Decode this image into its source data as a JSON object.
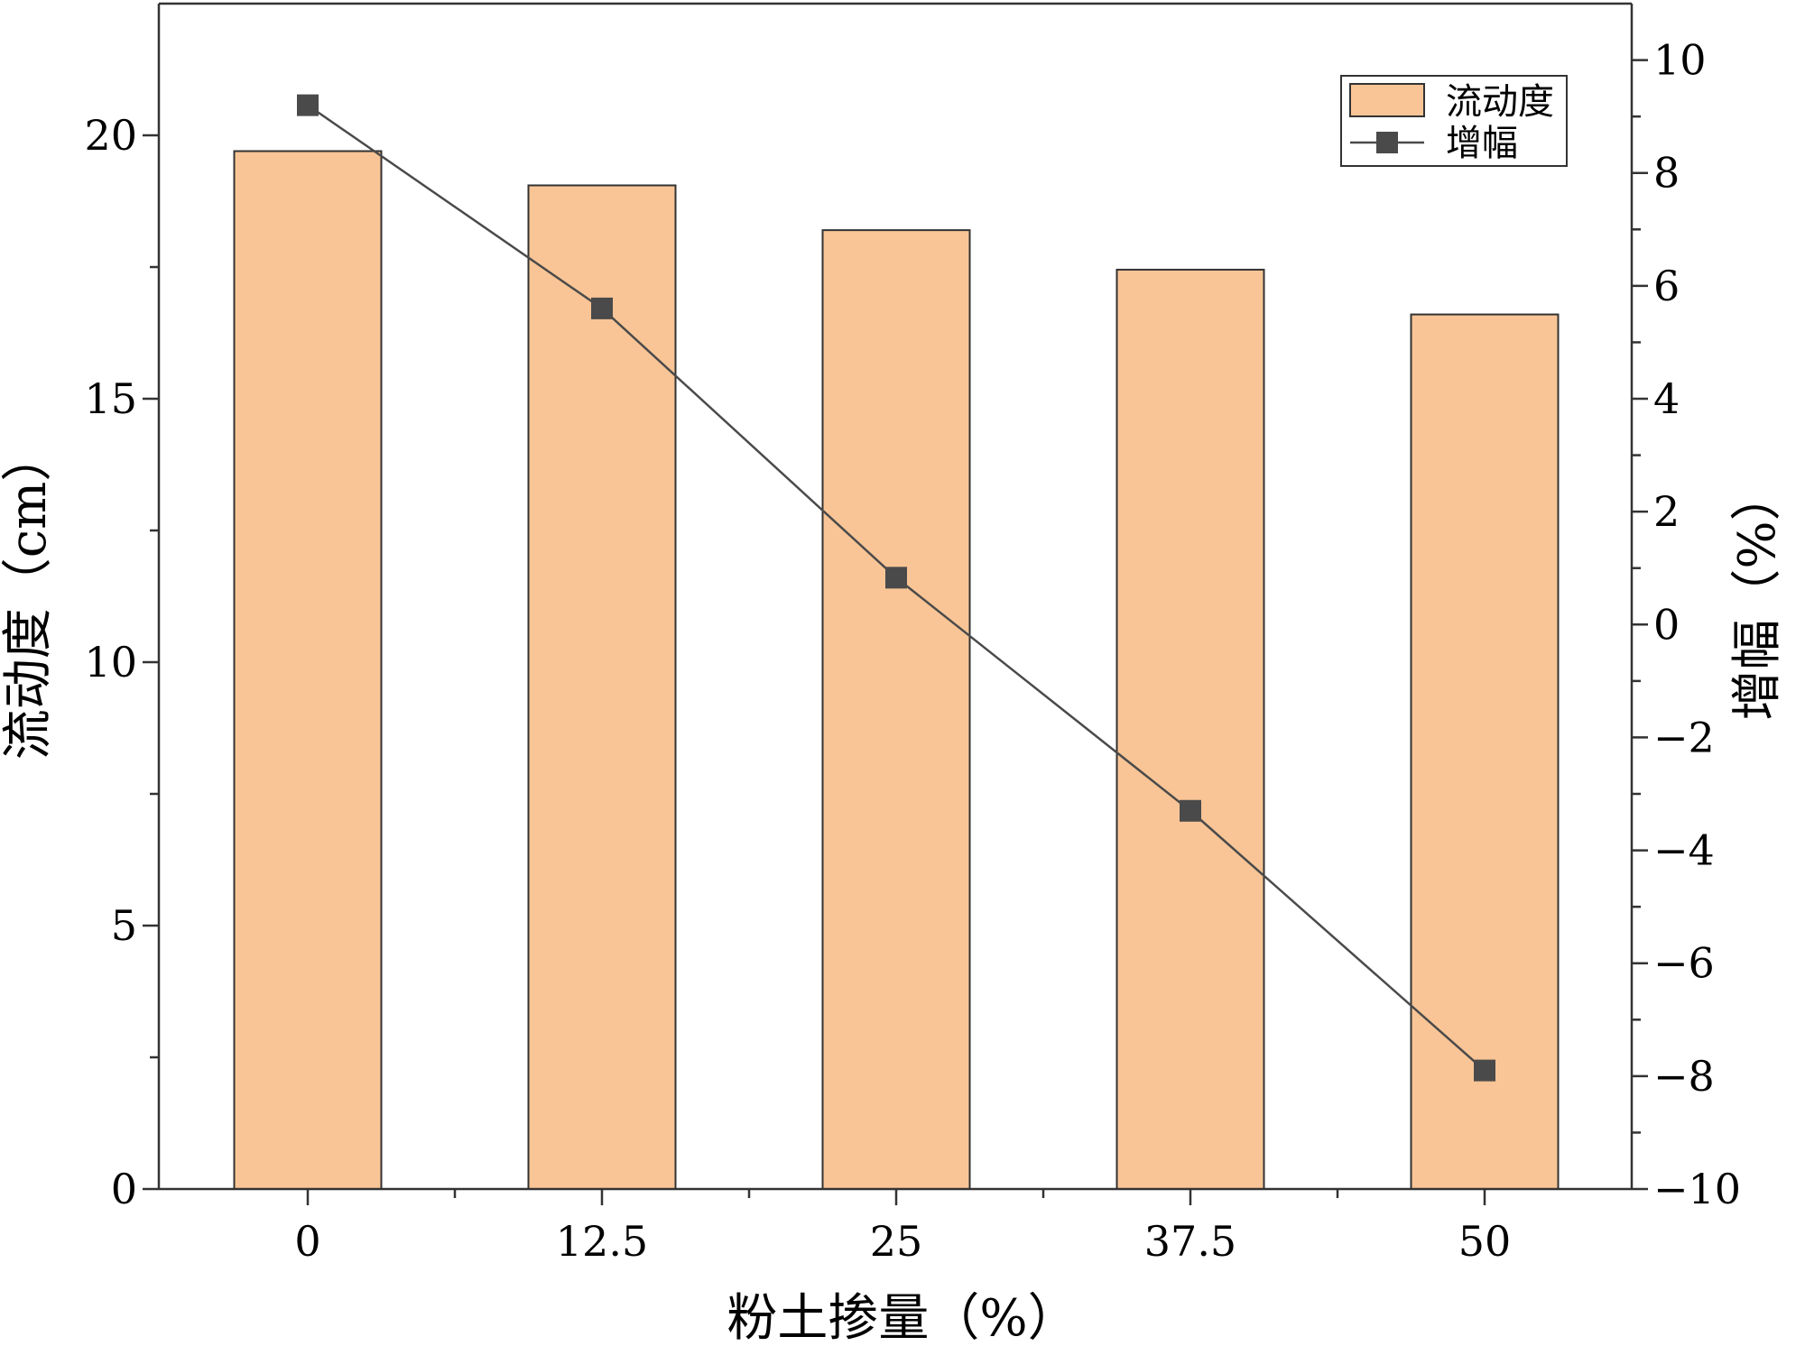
{
  "chart_data": {
    "type": "bar",
    "categories": [
      "0",
      "12.5",
      "25",
      "37.5",
      "50"
    ],
    "xlabel": "粉土掺量（%）",
    "ylabel_left": "流动度（cm）",
    "ylabel_right": "增幅（%）",
    "ylim_left": [
      0,
      22.5
    ],
    "yticks_left": [
      0,
      5,
      10,
      15,
      20
    ],
    "ylim_right": [
      -10,
      11
    ],
    "yticks_right": [
      -10,
      -8,
      -6,
      -4,
      -2,
      0,
      2,
      4,
      6,
      8,
      10
    ],
    "series": [
      {
        "name": "流动度",
        "type": "bar",
        "axis": "left",
        "values": [
          19.7,
          19.05,
          18.2,
          17.45,
          16.6
        ],
        "color": "#f9c596"
      },
      {
        "name": "增幅",
        "type": "line",
        "axis": "right",
        "marker": "square",
        "values": [
          9.2,
          5.6,
          0.83,
          -3.3,
          -7.9
        ],
        "color": "#4a4a4a"
      }
    ],
    "legend": {
      "placement": "top-right",
      "items": [
        "流动度",
        "增幅"
      ]
    },
    "grid": false
  }
}
